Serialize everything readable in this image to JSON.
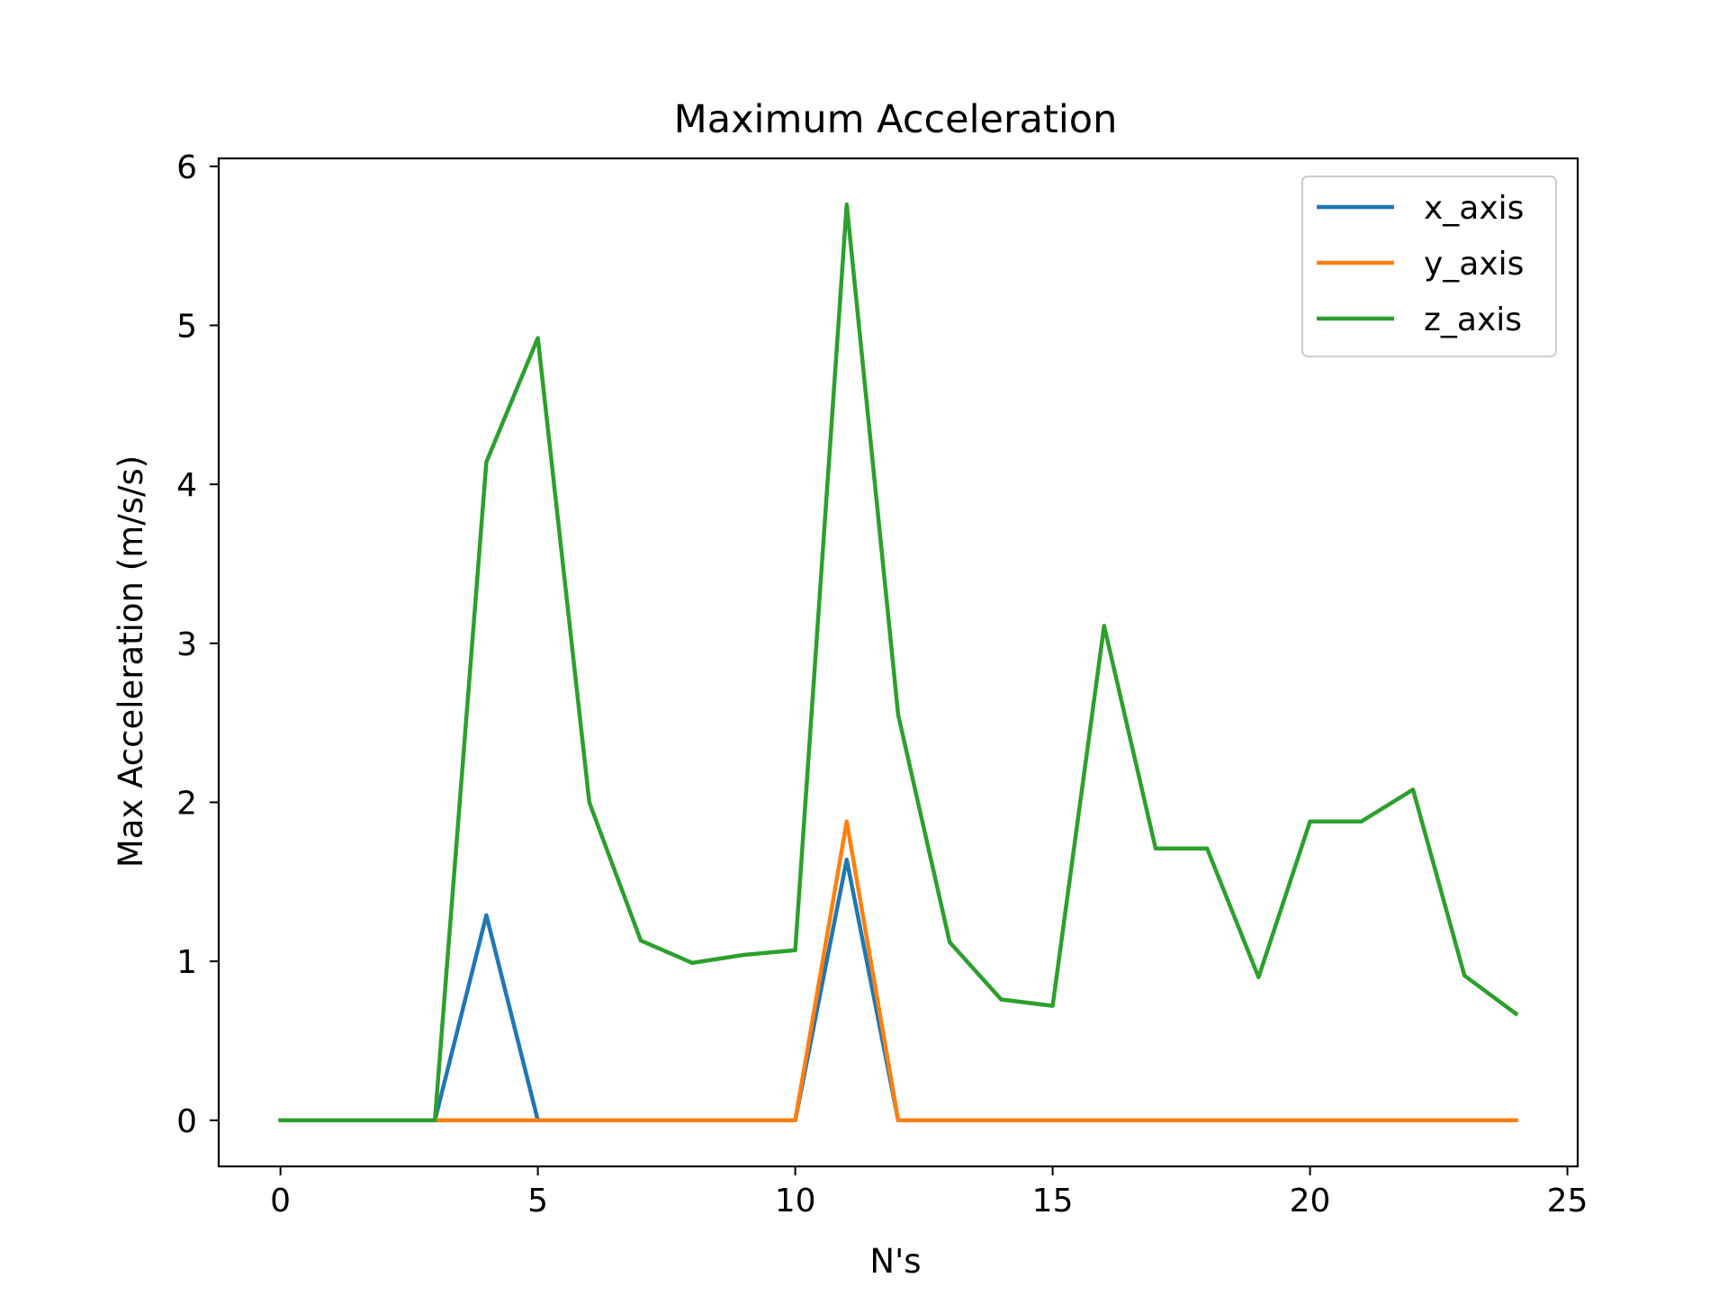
{
  "chart_data": {
    "type": "line",
    "title": "Maximum Acceleration",
    "xlabel": "N's",
    "ylabel": "Max Acceleration (m/s/s)",
    "xlim": [
      -1.2,
      25.2
    ],
    "ylim": [
      -0.29,
      6.05
    ],
    "xticks": [
      0,
      5,
      10,
      15,
      20,
      25
    ],
    "yticks": [
      0,
      1,
      2,
      3,
      4,
      5,
      6
    ],
    "grid": false,
    "legend_position": "top-right",
    "x": [
      0,
      1,
      2,
      3,
      4,
      5,
      6,
      7,
      8,
      9,
      10,
      11,
      12,
      13,
      14,
      15,
      16,
      17,
      18,
      19,
      20,
      21,
      22,
      23,
      24
    ],
    "series": [
      {
        "name": "x_axis",
        "color": "#1f77b4",
        "values": [
          0,
          0,
          0,
          0,
          1.29,
          0,
          0,
          0,
          0,
          0,
          0,
          1.64,
          0,
          0,
          0,
          0,
          0,
          0,
          0,
          0,
          0,
          0,
          0,
          0,
          0
        ]
      },
      {
        "name": "y_axis",
        "color": "#ff7f0e",
        "values": [
          0,
          0,
          0,
          0,
          0,
          0,
          0,
          0,
          0,
          0,
          0,
          1.88,
          0,
          0,
          0,
          0,
          0,
          0,
          0,
          0,
          0,
          0,
          0,
          0,
          0
        ]
      },
      {
        "name": "z_axis",
        "color": "#2ca02c",
        "values": [
          0,
          0,
          0,
          0,
          4.14,
          4.92,
          2.0,
          1.13,
          0.99,
          1.04,
          1.07,
          5.76,
          2.55,
          1.12,
          0.76,
          0.72,
          3.11,
          1.71,
          1.71,
          0.9,
          1.88,
          1.88,
          2.08,
          0.91,
          0.67
        ]
      }
    ]
  }
}
